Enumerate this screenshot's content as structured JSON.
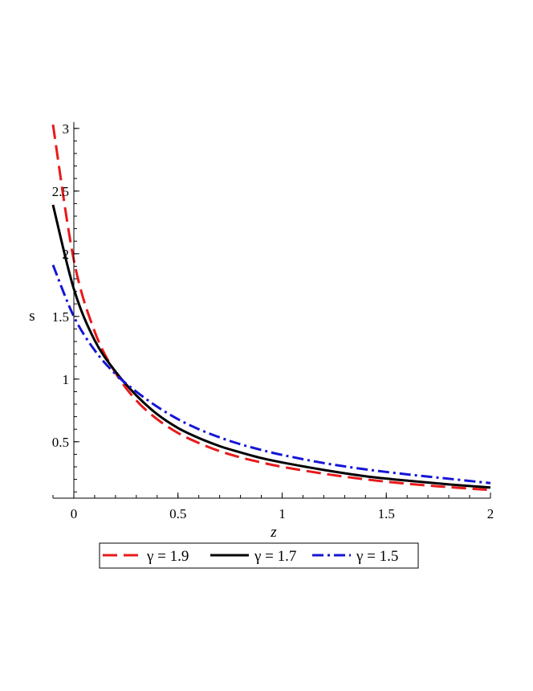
{
  "chart_data": {
    "type": "line",
    "xlabel": "z",
    "ylabel": "s",
    "xlim": [
      -0.1,
      2
    ],
    "ylim": [
      0.05,
      3.05
    ],
    "x_ticks": [
      0,
      0.5,
      1,
      1.5,
      2
    ],
    "x_tick_labels": [
      "0",
      "0.5",
      "1",
      "1.5",
      "2"
    ],
    "y_ticks": [
      0.5,
      1,
      1.5,
      2,
      2.5,
      3
    ],
    "y_tick_labels": [
      "0.5",
      "1",
      "1.5",
      "2",
      "2.5",
      "3"
    ],
    "x": [
      -0.1,
      0,
      0.1,
      0.2,
      0.3,
      0.4,
      0.5,
      0.6,
      0.7,
      0.8,
      0.9,
      1.0,
      1.2,
      1.4,
      1.6,
      1.8,
      2.0
    ],
    "series": [
      {
        "name": "γ = 1.9",
        "color": "#e8191b",
        "dash": "dashed",
        "values": [
          3.03,
          1.95,
          1.38,
          1.05,
          0.83,
          0.68,
          0.57,
          0.49,
          0.425,
          0.375,
          0.335,
          0.3,
          0.245,
          0.2,
          0.165,
          0.138,
          0.115
        ]
      },
      {
        "name": "γ = 1.7",
        "color": "#000000",
        "dash": "solid",
        "values": [
          2.39,
          1.72,
          1.31,
          1.06,
          0.87,
          0.72,
          0.61,
          0.53,
          0.465,
          0.415,
          0.37,
          0.335,
          0.275,
          0.225,
          0.19,
          0.16,
          0.135
        ]
      },
      {
        "name": "γ = 1.5",
        "color": "#1515d6",
        "dash": "dashdot",
        "values": [
          1.91,
          1.5,
          1.23,
          1.04,
          0.9,
          0.78,
          0.68,
          0.6,
          0.535,
          0.48,
          0.435,
          0.395,
          0.33,
          0.28,
          0.24,
          0.205,
          0.17
        ]
      }
    ],
    "legend_position": "bottom",
    "grid": false
  }
}
